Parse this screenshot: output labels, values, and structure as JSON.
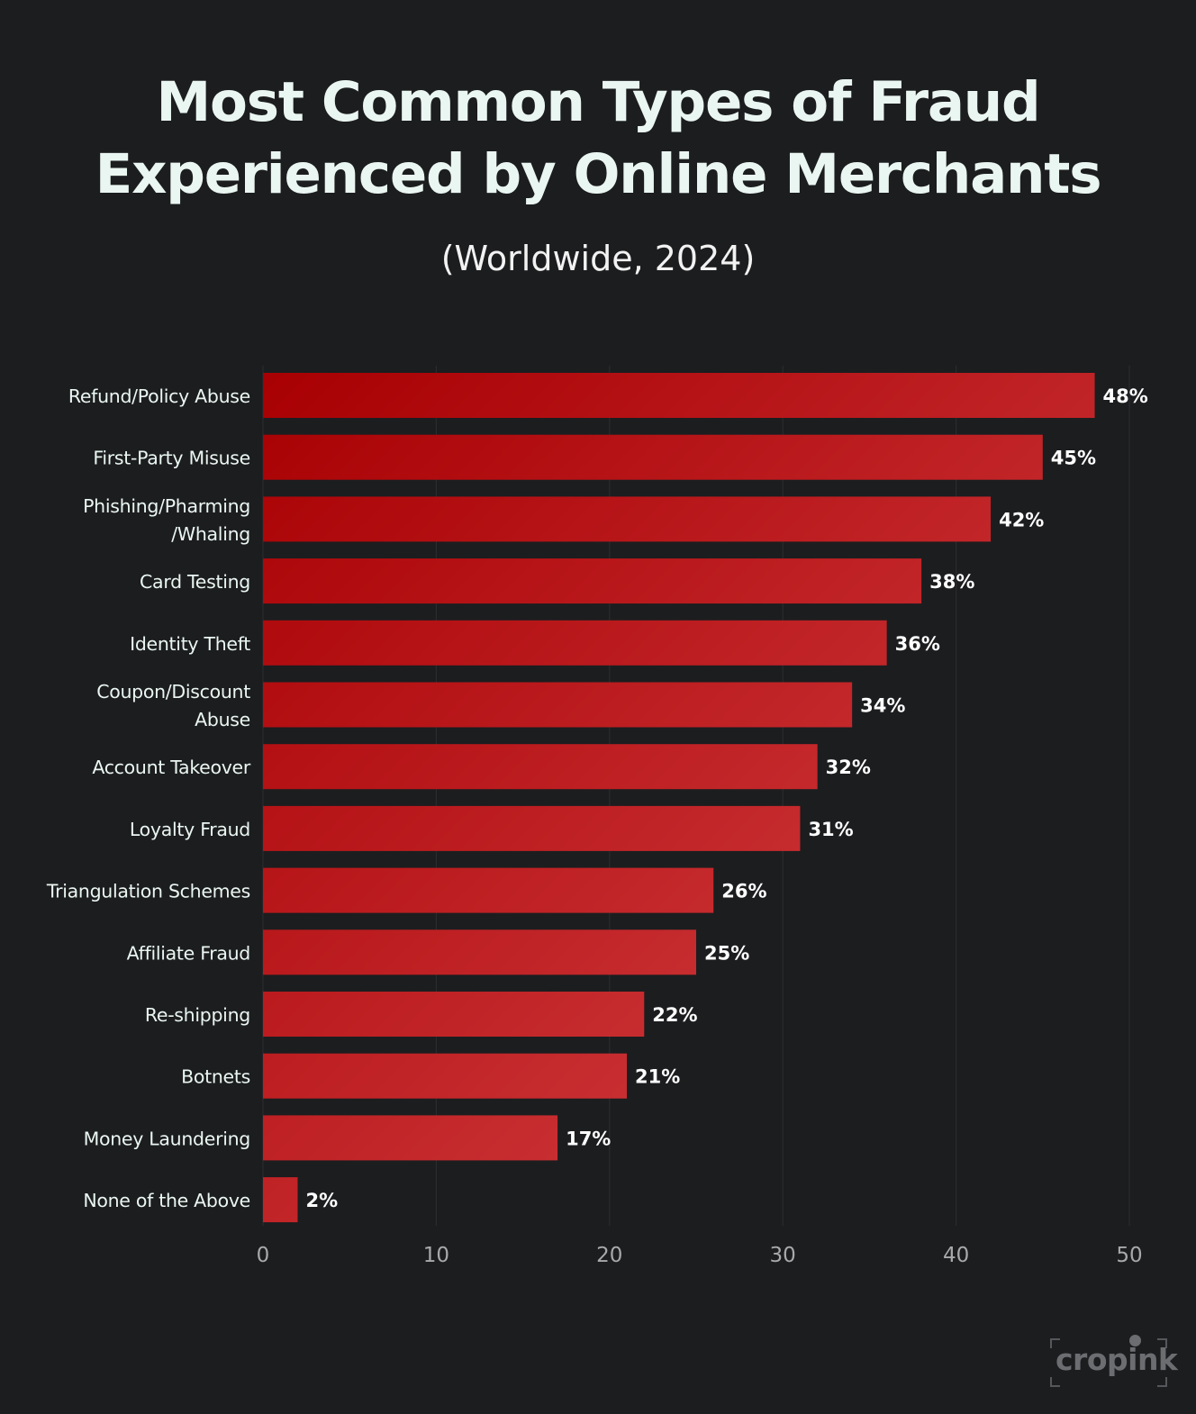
{
  "chart_data": {
    "type": "bar",
    "orientation": "horizontal",
    "title": "Most Common Types of Fraud Experienced by Online Merchants",
    "title_lines": [
      "Most Common Types of Fraud",
      "Experienced by Online Merchants"
    ],
    "subtitle": "(Worldwide, 2024)",
    "categories": [
      "Refund/Policy Abuse",
      "First-Party Misuse",
      "Phishing/Pharming /Whaling",
      "Card Testing",
      "Identity Theft",
      "Coupon/Discount Abuse",
      "Account Takeover",
      "Loyalty Fraud",
      "Triangulation Schemes",
      "Affiliate Fraud",
      "Re-shipping",
      "Botnets",
      "Money Laundering",
      "None of the Above"
    ],
    "category_lines": [
      [
        "Refund/Policy Abuse"
      ],
      [
        "First-Party Misuse"
      ],
      [
        "Phishing/Pharming",
        "/Whaling"
      ],
      [
        "Card Testing"
      ],
      [
        "Identity Theft"
      ],
      [
        "Coupon/Discount",
        "Abuse"
      ],
      [
        "Account Takeover"
      ],
      [
        "Loyalty Fraud"
      ],
      [
        "Triangulation Schemes"
      ],
      [
        "Affiliate Fraud"
      ],
      [
        "Re-shipping"
      ],
      [
        "Botnets"
      ],
      [
        "Money Laundering"
      ],
      [
        "None of the Above"
      ]
    ],
    "values": [
      48,
      45,
      42,
      38,
      36,
      34,
      32,
      31,
      26,
      25,
      22,
      21,
      17,
      2
    ],
    "data_labels": [
      "48%",
      "45%",
      "42%",
      "38%",
      "36%",
      "34%",
      "32%",
      "31%",
      "26%",
      "25%",
      "22%",
      "21%",
      "17%",
      "2%"
    ],
    "xlim": [
      0,
      50
    ],
    "xticks": [
      0,
      10,
      20,
      30,
      40,
      50
    ],
    "xtick_labels": [
      "0",
      "10",
      "20",
      "30",
      "40",
      "50"
    ],
    "xlabel": "",
    "ylabel": "",
    "grid": "vertical",
    "legend": "none",
    "colors": {
      "background": "#1c1d1f",
      "bar_dark": "#a80003",
      "bar_light": "#d9474a",
      "text": "#eaf6f1",
      "tick_text": "#a7a9ab",
      "grid": "#2a2b2e"
    }
  },
  "brand": {
    "logo": "cropink",
    "logo_icon": "dot-icon"
  }
}
